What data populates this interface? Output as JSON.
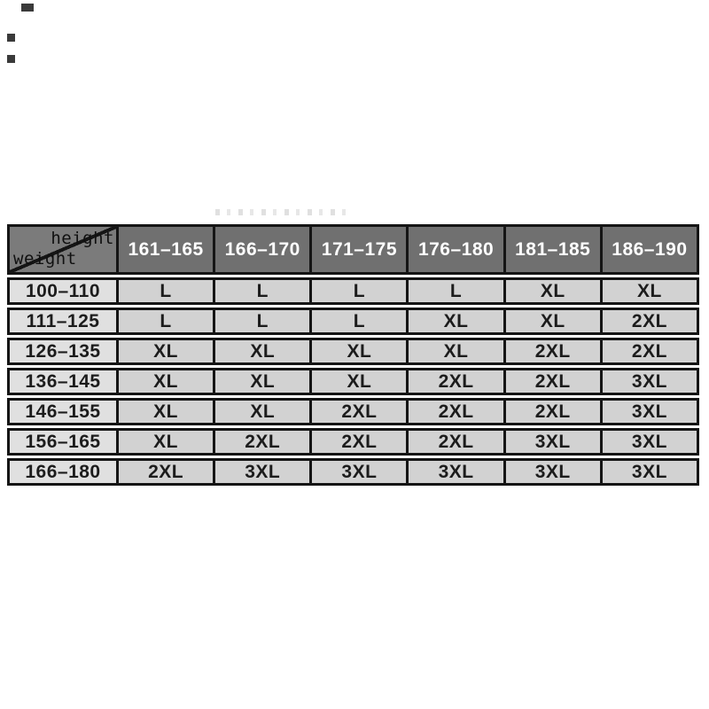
{
  "colors": {
    "page_background": "#ffffff",
    "header_background": "#707070",
    "corner_background": "#7b7b7b",
    "header_text": "#ffffff",
    "row_label_background": "#e0e0e0",
    "cell_background": "#d2d2d2",
    "cell_text": "#1c1c1c",
    "border": "#151515"
  },
  "chart_data": {
    "type": "table",
    "title": "",
    "corner": {
      "top_right_label": "height",
      "bottom_left_label": "weight"
    },
    "columns": [
      "161–165",
      "166–170",
      "171–175",
      "176–180",
      "181–185",
      "186–190"
    ],
    "rows": [
      {
        "weight": "100–110",
        "sizes": [
          "L",
          "L",
          "L",
          "L",
          "XL",
          "XL"
        ]
      },
      {
        "weight": "111–125",
        "sizes": [
          "L",
          "L",
          "L",
          "XL",
          "XL",
          "2XL"
        ]
      },
      {
        "weight": "126–135",
        "sizes": [
          "XL",
          "XL",
          "XL",
          "XL",
          "2XL",
          "2XL"
        ]
      },
      {
        "weight": "136–145",
        "sizes": [
          "XL",
          "XL",
          "XL",
          "2XL",
          "2XL",
          "3XL"
        ]
      },
      {
        "weight": "146–155",
        "sizes": [
          "XL",
          "XL",
          "2XL",
          "2XL",
          "2XL",
          "3XL"
        ]
      },
      {
        "weight": "156–165",
        "sizes": [
          "XL",
          "2XL",
          "2XL",
          "2XL",
          "3XL",
          "3XL"
        ]
      },
      {
        "weight": "166–180",
        "sizes": [
          "2XL",
          "3XL",
          "3XL",
          "3XL",
          "3XL",
          "3XL"
        ]
      }
    ]
  }
}
